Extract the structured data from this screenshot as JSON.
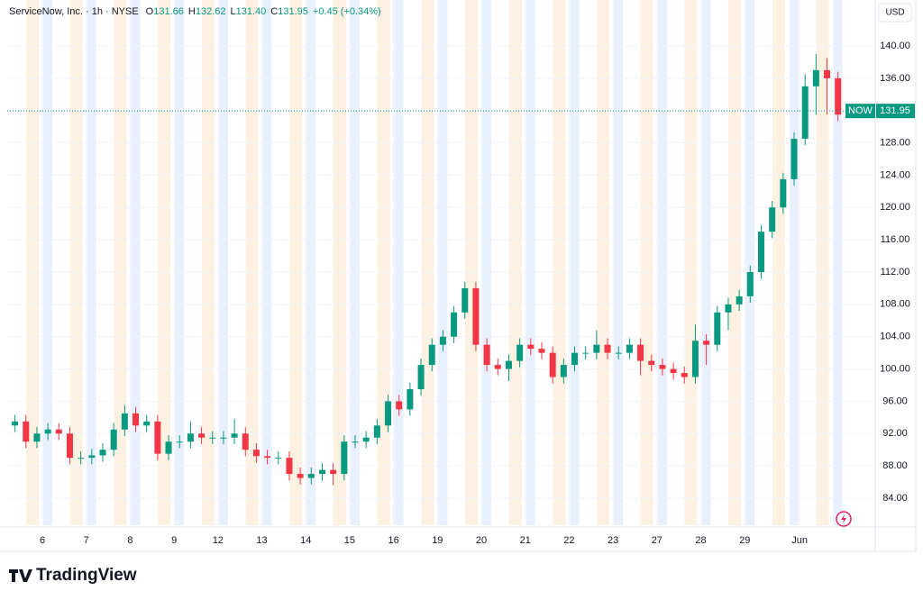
{
  "chart_data": {
    "type": "candlestick",
    "title": "ServiceNow, Inc. · 1h · NYSE",
    "ohlc_letters": [
      "O",
      "H",
      "L",
      "C"
    ],
    "header": {
      "open": "131.66",
      "high": "132.62",
      "low": "131.40",
      "close": "131.95",
      "change": "+0.45 (+0.34%)"
    },
    "symbol": "NOW",
    "currency": "USD",
    "brand": "TradingView",
    "categories": [
      null,
      null,
      null,
      "6",
      null,
      null,
      null,
      "7",
      null,
      null,
      null,
      "8",
      null,
      null,
      null,
      "9",
      null,
      null,
      null,
      "12",
      null,
      null,
      null,
      "13",
      null,
      null,
      null,
      "14",
      null,
      null,
      null,
      "15",
      null,
      null,
      null,
      "16",
      null,
      null,
      null,
      "19",
      null,
      null,
      null,
      "20",
      null,
      null,
      null,
      "21",
      null,
      null,
      null,
      "22",
      null,
      null,
      null,
      "23",
      null,
      null,
      null,
      "27",
      null,
      null,
      null,
      "28",
      null,
      null,
      null,
      "29",
      null,
      null,
      null,
      null,
      "Jun",
      null,
      null,
      null,
      null
    ],
    "open": [
      93,
      93.5,
      91,
      92,
      92.5,
      92,
      89,
      89,
      89.3,
      90,
      92.5,
      94.5,
      93,
      93.5,
      89.5,
      91,
      91,
      92,
      91.5,
      91.5,
      91.5,
      92,
      90,
      89.2,
      89,
      89,
      87,
      86.5,
      87,
      87.5,
      87,
      91,
      91,
      91.5,
      93,
      96,
      95,
      97.5,
      100.5,
      103,
      104,
      107,
      110,
      103,
      100.5,
      100,
      101,
      103,
      102.5,
      102,
      99,
      100.5,
      102,
      102,
      103,
      102,
      102,
      103,
      101,
      100.5,
      100,
      99.5,
      99,
      103.5,
      103,
      107,
      108,
      109,
      112,
      117,
      120,
      123.5,
      128.5,
      135,
      137,
      136,
      131.66
    ],
    "high": [
      94.3,
      94.3,
      92.8,
      93.3,
      93.3,
      92.8,
      89.8,
      90.1,
      90.8,
      93.3,
      95.5,
      95.3,
      94.3,
      94.3,
      91.8,
      91.8,
      93.5,
      92.8,
      92.3,
      92.3,
      93.8,
      92.8,
      90.8,
      90,
      89.8,
      89.8,
      87.8,
      87.8,
      88.3,
      88.3,
      91.8,
      91.8,
      92.3,
      93.8,
      96.8,
      96.8,
      98.3,
      101.3,
      103.8,
      104.8,
      107.8,
      110.8,
      110.8,
      103.8,
      101.3,
      101.8,
      103.8,
      103.8,
      103.3,
      102.8,
      101.3,
      102.8,
      102.8,
      104.8,
      103.8,
      102.8,
      103.8,
      103.8,
      101.8,
      101.3,
      100.8,
      100.3,
      105.5,
      104.3,
      107.8,
      108.8,
      109.8,
      112.8,
      117.8,
      120.8,
      124.3,
      129.3,
      136.5,
      139,
      138.5,
      136.8,
      132.62
    ],
    "low": [
      92.2,
      90.2,
      90.2,
      91.2,
      91.2,
      88.2,
      88.2,
      88.2,
      88.5,
      89.2,
      91.7,
      92.2,
      92.2,
      88.7,
      88.7,
      90.2,
      90.2,
      90.7,
      90.7,
      90.7,
      90.7,
      89.2,
      88.4,
      88.2,
      88.2,
      86.2,
      85.7,
      85.7,
      86.2,
      85.6,
      86.2,
      90.2,
      90.2,
      90.7,
      92.2,
      94.2,
      94.2,
      96.7,
      99.7,
      102.2,
      103.2,
      106.2,
      102.2,
      99.7,
      99.2,
      98.5,
      100.2,
      101.7,
      101.2,
      98.2,
      98.2,
      99.7,
      101.2,
      101.2,
      101.2,
      101.2,
      101.2,
      99.2,
      99.7,
      99.2,
      98.7,
      98.2,
      98.2,
      100.5,
      102.2,
      104.8,
      107.2,
      108.2,
      111.2,
      116.2,
      119.2,
      122.7,
      127.7,
      131.5,
      131.5,
      130.7,
      131.4
    ],
    "close": [
      93.5,
      91,
      92,
      92.5,
      92,
      89,
      89,
      89.3,
      90,
      92.5,
      94.5,
      93,
      93.5,
      89.5,
      91,
      91,
      92,
      91.5,
      91.5,
      91.5,
      92,
      90,
      89.2,
      89,
      89,
      87,
      86.5,
      87,
      87.5,
      87,
      91,
      91,
      91.5,
      93,
      96,
      95,
      97.5,
      100.5,
      103,
      104,
      107,
      110,
      103,
      100.5,
      100,
      101,
      103,
      102.5,
      102,
      99,
      100.5,
      102,
      102,
      103,
      102,
      102,
      103,
      101,
      100.5,
      100,
      99.5,
      99,
      103.5,
      103,
      107,
      108,
      109,
      112,
      117,
      120,
      123.5,
      128.5,
      135,
      137,
      136,
      131.5,
      131.95
    ],
    "up_color": "#089981",
    "down_color": "#f23645",
    "ylim": [
      80.65,
      145.69
    ],
    "yticks": [
      {
        "value": 84,
        "label": "84.00"
      },
      {
        "value": 88,
        "label": "88.00"
      },
      {
        "value": 92,
        "label": "92.00"
      },
      {
        "value": 96,
        "label": "96.00"
      },
      {
        "value": 100,
        "label": "100.00"
      },
      {
        "value": 104,
        "label": "104.00"
      },
      {
        "value": 108,
        "label": "108.00"
      },
      {
        "value": 112,
        "label": "112.00"
      },
      {
        "value": 116,
        "label": "116.00"
      },
      {
        "value": 120,
        "label": "120.00"
      },
      {
        "value": 124,
        "label": "124.00"
      },
      {
        "value": 128,
        "label": "128.00"
      },
      {
        "value": 132,
        "label": "132.00"
      },
      {
        "value": 136,
        "label": "136.00"
      },
      {
        "value": 140,
        "label": "140.00"
      }
    ],
    "grid": true
  }
}
